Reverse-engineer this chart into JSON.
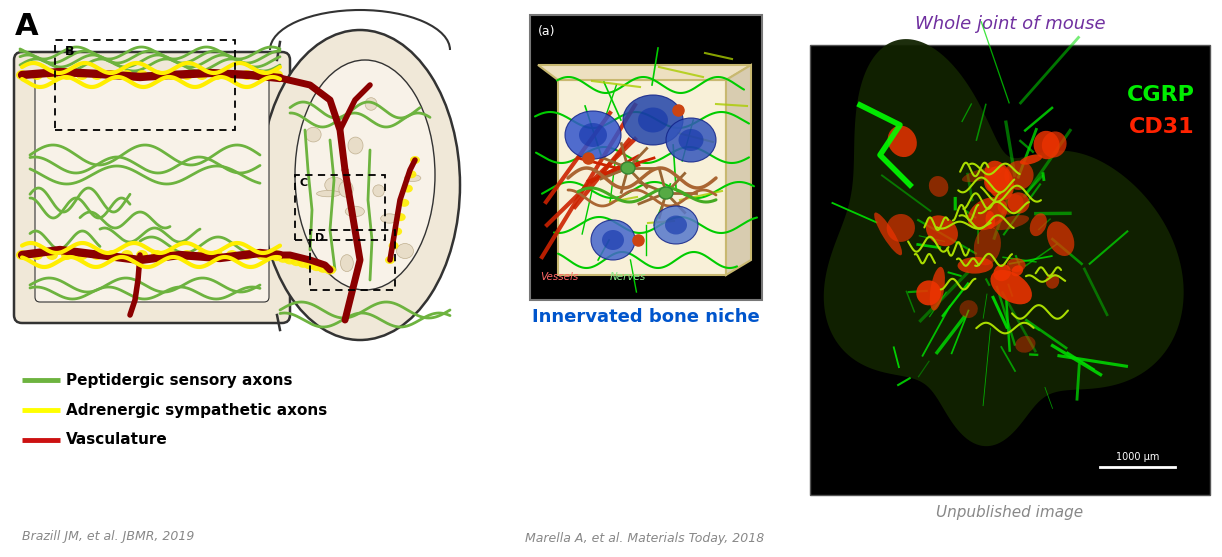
{
  "title_label": "A",
  "fig_width": 12.22,
  "fig_height": 5.57,
  "dpi": 100,
  "bg_color": "#ffffff",
  "legend_items": [
    {
      "label": "Peptidergic sensory axons",
      "color": "#6db33f"
    },
    {
      "label": "Adrenergic sympathetic axons",
      "color": "#ffff00"
    },
    {
      "label": "Vasculature",
      "color": "#cc1111"
    }
  ],
  "citation_left": "Brazill JM, et al. JBMR, 2019",
  "citation_right": "Marella A, et al. Materials Today, 2018",
  "panel_middle_title": "Innervated bone niche",
  "panel_right_title": "Whole joint of mouse",
  "panel_right_subtitle": "Unpublished image",
  "cgrp_label": "CGRP",
  "cd31_label": "CD31",
  "scalebar_label": "1000 μm",
  "cgrp_color": "#00ee00",
  "cd31_color": "#ff2200",
  "middle_title_color": "#0055cc",
  "panel_right_title_color": "#7030a0",
  "panel_right_subtitle_color": "#888888",
  "bone_color": "#f0e8d8",
  "marrow_color": "#f8f2e8",
  "bone_edge": "#333333",
  "green_nerve": "#6db33f",
  "yellow_axon": "#ffee00",
  "dark_red_vessel": "#8b0000",
  "vessel_red": "#cc1111"
}
